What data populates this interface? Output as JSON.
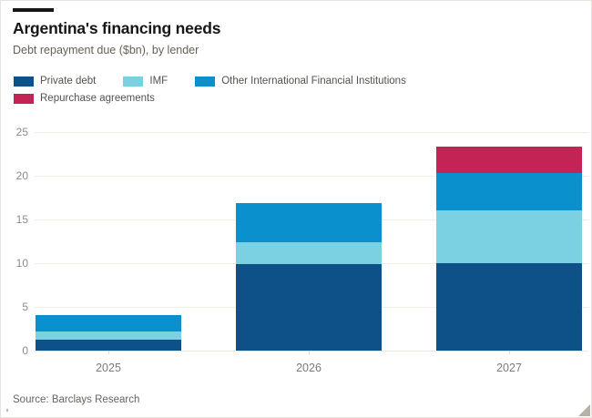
{
  "header": {
    "title": "Argentina's financing needs",
    "subtitle": "Debt repayment due ($bn), by lender"
  },
  "legend": {
    "items": [
      {
        "label": "Private debt",
        "color": "#0d5188"
      },
      {
        "label": "IMF",
        "color": "#7bd1e2"
      },
      {
        "label": "Other International Financial Institutions",
        "color": "#0a90cd"
      },
      {
        "label": "Repurchase agreements",
        "color": "#c32455"
      }
    ]
  },
  "chart_data": {
    "type": "bar",
    "stacked": true,
    "title": "Argentina's financing needs",
    "subtitle": "Debt repayment due ($bn), by lender",
    "xlabel": "",
    "ylabel": "Debt repayment due ($bn)",
    "categories": [
      "2025",
      "2026",
      "2027"
    ],
    "series": [
      {
        "name": "Private debt",
        "color": "#0d5188",
        "values": [
          1.2,
          9.9,
          10.0
        ]
      },
      {
        "name": "IMF",
        "color": "#7bd1e2",
        "values": [
          1.0,
          2.5,
          6.0
        ]
      },
      {
        "name": "Other International Financial Institutions",
        "color": "#0a90cd",
        "values": [
          1.9,
          4.5,
          4.3
        ]
      },
      {
        "name": "Repurchase agreements",
        "color": "#c32455",
        "values": [
          0,
          0,
          3.0
        ]
      }
    ],
    "totals": [
      4.1,
      16.9,
      23.3
    ],
    "ylim": [
      0,
      25
    ],
    "yticks": [
      0,
      5,
      10,
      15,
      20,
      25
    ],
    "grid": true,
    "legend_position": "top"
  },
  "footer": {
    "source": "Source: Barclays Research"
  }
}
